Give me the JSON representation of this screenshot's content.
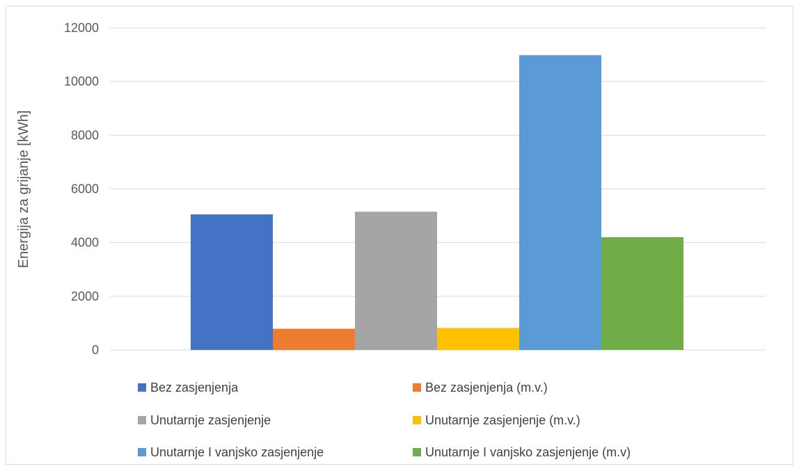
{
  "chart_data": {
    "type": "bar",
    "title": "",
    "xlabel": "",
    "ylabel": "Energija za grijanje [kWh]",
    "ylim": [
      0,
      12000
    ],
    "yticks": [
      0,
      2000,
      4000,
      6000,
      8000,
      10000,
      12000
    ],
    "grid": true,
    "legend_position": "bottom",
    "series": [
      {
        "name": "Bez zasjenjenja",
        "value": 5050,
        "color": "#4472c4"
      },
      {
        "name": "Bez zasjenjenja (m.v.)",
        "value": 790,
        "color": "#ed7d31"
      },
      {
        "name": "Unutarnje zasjenjenje",
        "value": 5150,
        "color": "#a5a5a5"
      },
      {
        "name": "Unutarnje zasjenjenje (m.v.)",
        "value": 820,
        "color": "#ffc000"
      },
      {
        "name": "Unutarnje I vanjsko zasjenjenje",
        "value": 10980,
        "color": "#5b9bd5"
      },
      {
        "name": "Unutarnje I vanjsko zasjenjenje (m.v)",
        "value": 4200,
        "color": "#70ad47"
      }
    ]
  }
}
